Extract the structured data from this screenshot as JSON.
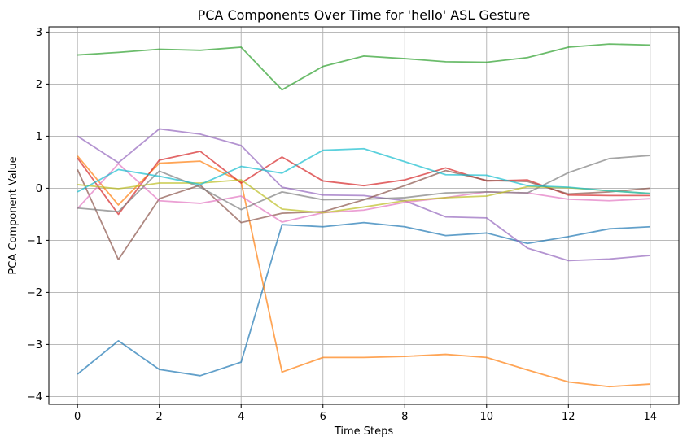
{
  "chart_data": {
    "type": "line",
    "title": "PCA Components Over Time for 'hello' ASL Gesture",
    "xlabel": "Time Steps",
    "ylabel": "PCA Component Value",
    "xlim": [
      -0.7,
      14.7
    ],
    "ylim": [
      -4.15,
      3.1
    ],
    "xticks": [
      0,
      2,
      4,
      6,
      8,
      10,
      12,
      14
    ],
    "yticks": [
      3,
      2,
      1,
      0,
      -1,
      -2,
      -3,
      -4
    ],
    "ytick_labels": [
      "3",
      "2",
      "1",
      "0",
      "−1",
      "−2",
      "−3",
      "−4"
    ],
    "grid": true,
    "legend": "none",
    "x": [
      0,
      1,
      2,
      3,
      4,
      5,
      6,
      7,
      8,
      9,
      10,
      11,
      12,
      13,
      14
    ],
    "series": [
      {
        "color": "#1f77b4",
        "values": [
          -3.57,
          -2.93,
          -3.48,
          -3.6,
          -3.34,
          -0.7,
          -0.74,
          -0.66,
          -0.74,
          -0.91,
          -0.86,
          -1.06,
          -0.93,
          -0.78,
          -0.74
        ]
      },
      {
        "color": "#ff7f0e",
        "values": [
          0.62,
          -0.32,
          0.48,
          0.52,
          0.12,
          -3.53,
          -3.25,
          -3.25,
          -3.23,
          -3.19,
          -3.25,
          -3.49,
          -3.72,
          -3.81,
          -3.76
        ]
      },
      {
        "color": "#2ca02c",
        "values": [
          2.56,
          2.61,
          2.67,
          2.65,
          2.71,
          1.89,
          2.34,
          2.54,
          2.49,
          2.43,
          2.42,
          2.51,
          2.71,
          2.77,
          2.75
        ]
      },
      {
        "color": "#d62728",
        "values": [
          0.58,
          -0.5,
          0.54,
          0.71,
          0.1,
          0.6,
          0.14,
          0.05,
          0.16,
          0.39,
          0.14,
          0.16,
          -0.13,
          -0.14,
          -0.14
        ]
      },
      {
        "color": "#9467bd",
        "values": [
          1.0,
          0.49,
          1.14,
          1.04,
          0.82,
          0.02,
          -0.13,
          -0.14,
          -0.24,
          -0.55,
          -0.57,
          -1.15,
          -1.39,
          -1.36,
          -1.29
        ]
      },
      {
        "color": "#8c564b",
        "values": [
          0.36,
          -1.37,
          -0.2,
          0.06,
          -0.66,
          -0.48,
          -0.45,
          -0.22,
          0.05,
          0.34,
          0.15,
          0.13,
          -0.11,
          -0.07,
          0.0
        ]
      },
      {
        "color": "#e377c2",
        "values": [
          -0.39,
          0.47,
          -0.24,
          -0.29,
          -0.15,
          -0.65,
          -0.47,
          -0.42,
          -0.27,
          -0.18,
          -0.07,
          -0.09,
          -0.21,
          -0.24,
          -0.2
        ]
      },
      {
        "color": "#7f7f7f",
        "values": [
          -0.38,
          -0.45,
          0.33,
          0.02,
          -0.41,
          -0.07,
          -0.22,
          -0.21,
          -0.18,
          -0.09,
          -0.07,
          -0.09,
          0.3,
          0.57,
          0.63
        ]
      },
      {
        "color": "#bcbd22",
        "values": [
          0.07,
          -0.01,
          0.1,
          0.1,
          0.16,
          -0.4,
          -0.47,
          -0.36,
          -0.24,
          -0.18,
          -0.15,
          0.03,
          0.01,
          -0.05,
          -0.1
        ]
      },
      {
        "color": "#17becf",
        "values": [
          -0.07,
          0.36,
          0.23,
          0.07,
          0.42,
          0.29,
          0.73,
          0.76,
          0.51,
          0.26,
          0.25,
          0.05,
          0.02,
          -0.05,
          -0.1
        ]
      }
    ]
  }
}
